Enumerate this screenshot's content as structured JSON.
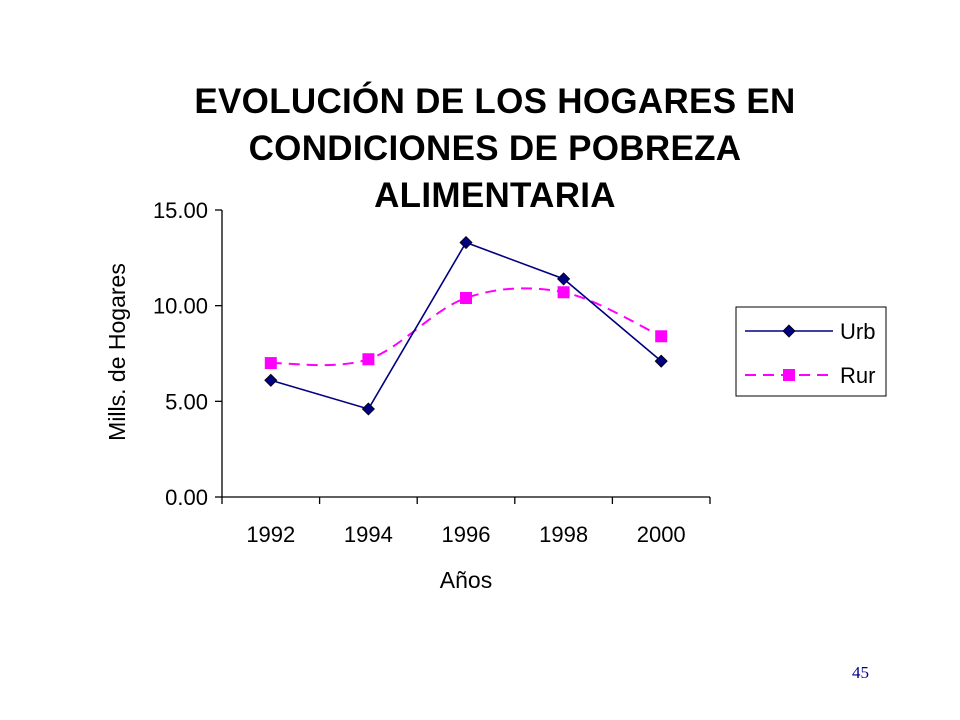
{
  "chart_data": {
    "type": "line",
    "title": [
      "EVOLUCIÓN DE LOS HOGARES EN",
      "CONDICIONES DE POBREZA",
      "ALIMENTARIA"
    ],
    "xlabel": "Años",
    "ylabel": "Mills. de Hogares",
    "categories": [
      "1992",
      "1994",
      "1996",
      "1998",
      "2000"
    ],
    "yticks": [
      "0.00",
      "5.00",
      "10.00",
      "15.00"
    ],
    "ylim": [
      0,
      15
    ],
    "legend_position": "right",
    "series": [
      {
        "name": "Urb",
        "values": [
          6.1,
          4.6,
          13.3,
          11.4,
          7.1
        ],
        "color": "#000080",
        "marker": "diamond",
        "line": "solid"
      },
      {
        "name": "Rur",
        "values": [
          7.0,
          7.2,
          10.4,
          10.7,
          8.4
        ],
        "color": "#ff00ff",
        "marker": "square",
        "line": "dashed-smooth"
      }
    ]
  },
  "page_number": "45"
}
